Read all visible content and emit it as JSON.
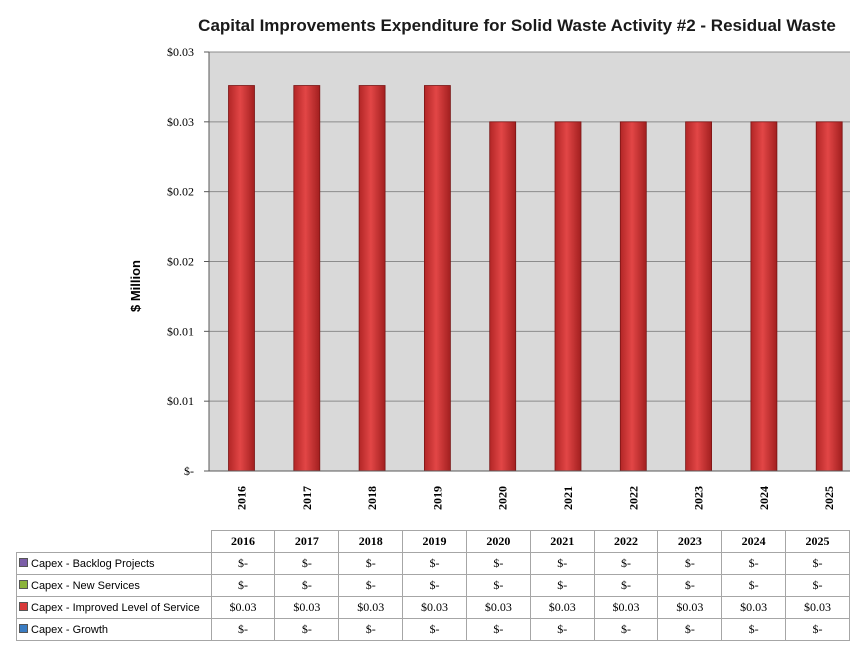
{
  "chart_data": {
    "type": "bar",
    "title": "Capital  Improvements Expenditure for Solid Waste  Activity #2  - Residual Waste",
    "ylabel": "$ Million",
    "xlabel": "",
    "ylim": [
      0,
      0.03
    ],
    "yticks": [
      "$-",
      "$0.01",
      "$0.01",
      "$0.02",
      "$0.02",
      "$0.03",
      "$0.03"
    ],
    "categories": [
      "2016",
      "2017",
      "2018",
      "2019",
      "2020",
      "2021",
      "2022",
      "2023",
      "2024",
      "2025"
    ],
    "series": [
      {
        "name": "Capex - Backlog Projects",
        "color": "#7b5ea7",
        "values": [
          0,
          0,
          0,
          0,
          0,
          0,
          0,
          0,
          0,
          0
        ]
      },
      {
        "name": "Capex - New Services",
        "color": "#8bb33a",
        "values": [
          0,
          0,
          0,
          0,
          0,
          0,
          0,
          0,
          0,
          0
        ]
      },
      {
        "name": "Capex - Improved Level of Service",
        "color": "#d83a3a",
        "values": [
          0.0276,
          0.0276,
          0.0276,
          0.0276,
          0.025,
          0.025,
          0.025,
          0.025,
          0.025,
          0.025
        ]
      },
      {
        "name": "Capex - Growth",
        "color": "#3a7cc2",
        "values": [
          0,
          0,
          0,
          0,
          0,
          0,
          0,
          0,
          0,
          0
        ]
      }
    ],
    "grid": true,
    "legend": "data-table-below"
  },
  "table": {
    "years": [
      "2016",
      "2017",
      "2018",
      "2019",
      "2020",
      "2021",
      "2022",
      "2023",
      "2024",
      "2025"
    ],
    "rows": [
      {
        "label": "Capex - Backlog Projects",
        "color": "#7b5ea7",
        "cells": [
          "$-",
          "$-",
          "$-",
          "$-",
          "$-",
          "$-",
          "$-",
          "$-",
          "$-",
          "$-"
        ]
      },
      {
        "label": "Capex - New Services",
        "color": "#8bb33a",
        "cells": [
          "$-",
          "$-",
          "$-",
          "$-",
          "$-",
          "$-",
          "$-",
          "$-",
          "$-",
          "$-"
        ]
      },
      {
        "label": "Capex - Improved Level of Service",
        "color": "#d83a3a",
        "cells": [
          "$0.03",
          "$0.03",
          "$0.03",
          "$0.03",
          "$0.03",
          "$0.03",
          "$0.03",
          "$0.03",
          "$0.03",
          "$0.03"
        ]
      },
      {
        "label": "Capex - Growth",
        "color": "#3a7cc2",
        "cells": [
          "$-",
          "$-",
          "$-",
          "$-",
          "$-",
          "$-",
          "$-",
          "$-",
          "$-",
          "$-"
        ]
      }
    ]
  }
}
